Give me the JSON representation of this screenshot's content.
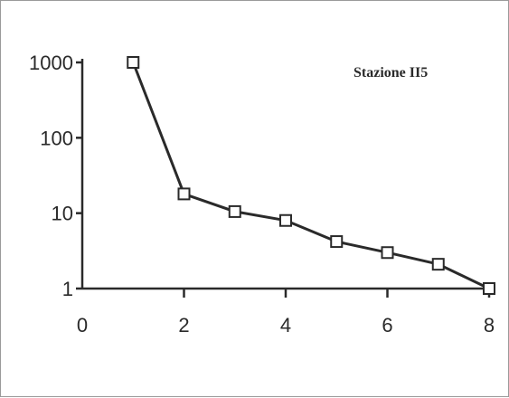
{
  "chart_data": {
    "type": "line",
    "title": "",
    "xlabel": "",
    "ylabel": "",
    "yscale": "log",
    "xlim": [
      0,
      8
    ],
    "ylim": [
      1,
      1000
    ],
    "x_ticks": [
      0,
      2,
      4,
      6,
      8
    ],
    "x_tick_labels": [
      "0",
      "2",
      "4",
      "6",
      "8"
    ],
    "y_ticks": [
      1,
      10,
      100,
      1000
    ],
    "y_tick_labels": [
      "1",
      "10",
      "100",
      "1000"
    ],
    "grid": false,
    "legend": "none",
    "annotation": "Stazione II5",
    "marker": "open-square",
    "color": "#2a2a2a",
    "series": [
      {
        "x": [
          1,
          2,
          3,
          4,
          5,
          6,
          7,
          8
        ],
        "y": [
          1000,
          18,
          10.5,
          8,
          4.2,
          3,
          2.1,
          1
        ]
      }
    ]
  }
}
